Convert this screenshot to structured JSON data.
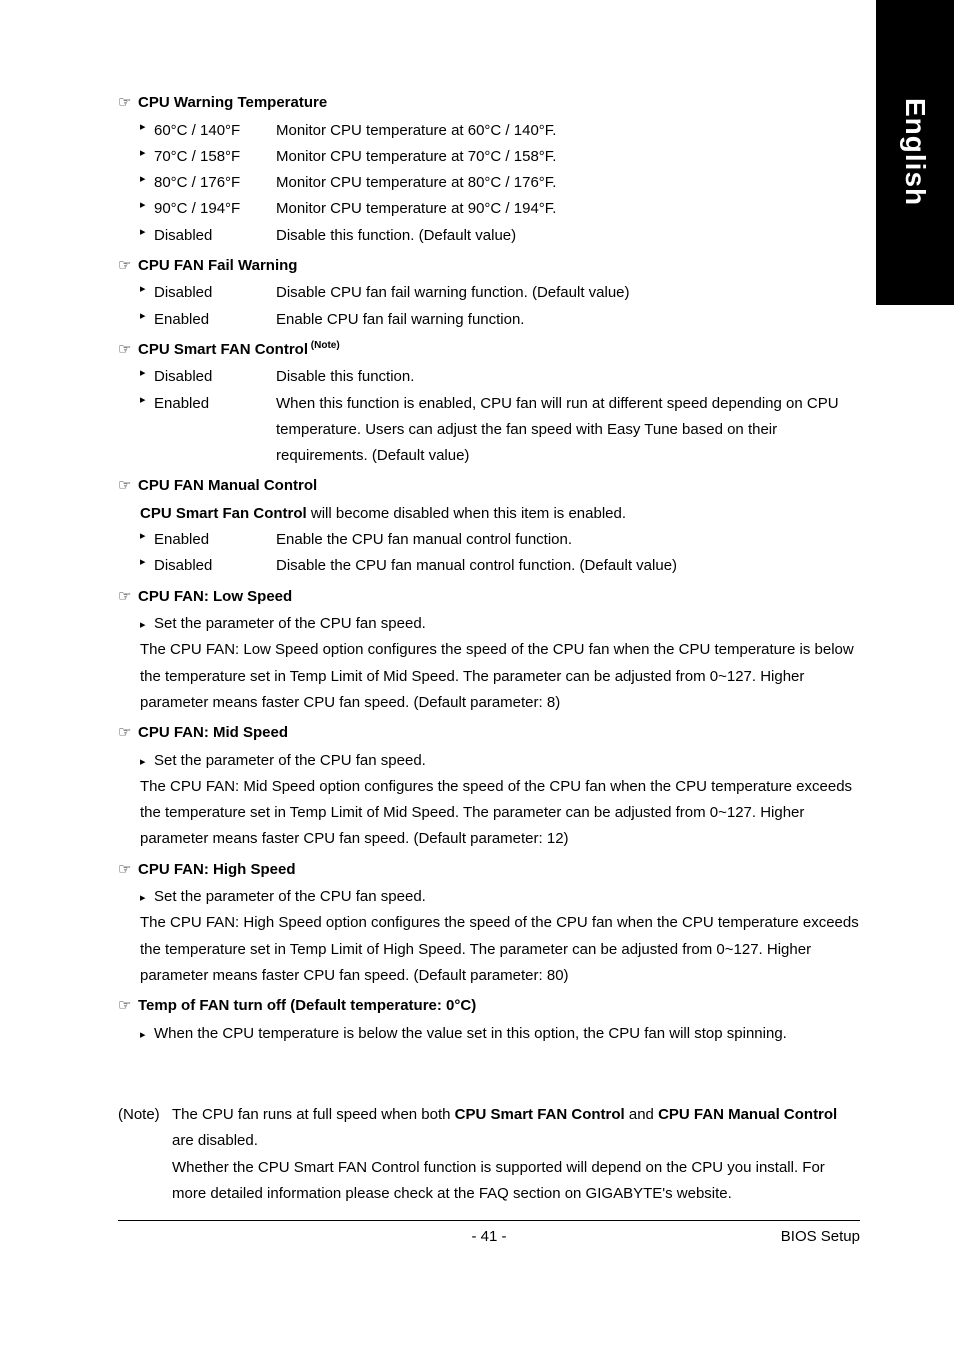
{
  "side_tab": "English",
  "sections": {
    "s1": {
      "title": "CPU Warning Temperature",
      "r1_label": "60°C / 140°F",
      "r1_desc": "Monitor CPU temperature at 60°C / 140°F.",
      "r2_label": "70°C / 158°F",
      "r2_desc": "Monitor CPU temperature at 70°C / 158°F.",
      "r3_label": "80°C / 176°F",
      "r3_desc": "Monitor CPU temperature at 80°C / 176°F.",
      "r4_label": "90°C / 194°F",
      "r4_desc": "Monitor CPU temperature at 90°C / 194°F.",
      "r5_label": "Disabled",
      "r5_desc": "Disable this function. (Default value)"
    },
    "s2": {
      "title": "CPU FAN Fail Warning",
      "r1_label": "Disabled",
      "r1_desc": "Disable CPU fan fail warning function. (Default value)",
      "r2_label": "Enabled",
      "r2_desc": "Enable CPU fan fail warning function."
    },
    "s3": {
      "title": "CPU Smart FAN Control",
      "note_sup": " (Note)",
      "r1_label": "Disabled",
      "r1_desc": "Disable this function.",
      "r2_label": "Enabled",
      "r2_desc": "When this function is enabled, CPU fan will run at different speed depending on CPU temperature. Users can adjust the fan speed with Easy Tune based on their requirements.  (Default value)"
    },
    "s4": {
      "title": "CPU FAN Manual Control",
      "intro_bold": "CPU Smart Fan Control",
      "intro_rest": " will become disabled when this item is enabled.",
      "r1_label": "Enabled",
      "r1_desc": "Enable the CPU fan manual control function.",
      "r2_label": "Disabled",
      "r2_desc": "Disable the CPU fan manual control function. (Default value)"
    },
    "s5": {
      "title": "CPU FAN: Low Speed",
      "bullet": "Set the parameter of the CPU fan speed.",
      "para": "The CPU FAN: Low Speed option configures the speed of the CPU fan when the CPU temperature is below the temperature set in Temp Limit of Mid Speed. The parameter can be adjusted from 0~127. Higher parameter means faster CPU fan speed. (Default parameter: 8)"
    },
    "s6": {
      "title": "CPU FAN: Mid Speed",
      "bullet": "Set the parameter of the CPU fan speed.",
      "para": "The CPU FAN: Mid Speed option configures the speed of the CPU fan when the CPU temperature exceeds the temperature set in Temp Limit of Mid Speed. The parameter can be adjusted from 0~127. Higher parameter means faster CPU fan speed. (Default parameter: 12)"
    },
    "s7": {
      "title": "CPU FAN: High Speed",
      "bullet": "Set the parameter of the CPU fan speed.",
      "para": "The CPU FAN: High Speed option configures the speed of the CPU fan when the CPU temperature exceeds the temperature set in Temp Limit of High Speed. The parameter can be adjusted from 0~127. Higher parameter means faster CPU fan speed. (Default parameter: 80)"
    },
    "s8": {
      "title": "Temp of FAN turn off (Default temperature: 0°C)",
      "bullet": "When the CPU temperature is below the value set in this option, the CPU fan will stop spinning."
    }
  },
  "note": {
    "label": "(Note)",
    "l1a": "The CPU fan runs at full speed when both ",
    "l1b": "CPU Smart FAN Control",
    "l1c": " and ",
    "l1d": "CPU FAN Manual Control",
    "l1e": " are disabled.",
    "l2": "Whether the CPU Smart FAN Control function is supported will depend on the CPU you install. For more detailed information please check at the FAQ section on GIGABYTE's website."
  },
  "footer": {
    "page": "- 41 -",
    "right": "BIOS Setup"
  },
  "icons": {
    "pointer": "☞",
    "bullet": "▸"
  }
}
